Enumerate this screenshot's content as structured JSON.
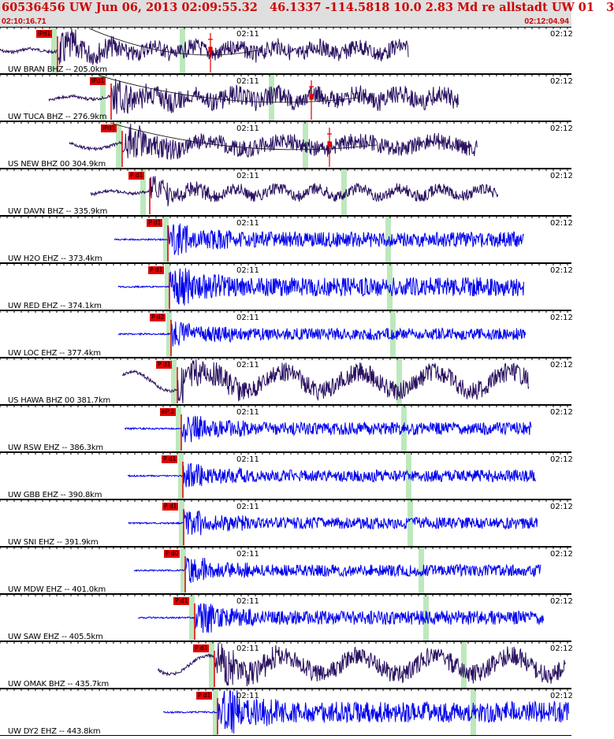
{
  "header": {
    "title": "60536456 UW Jun 06, 2013 02:09:55.32   46.1337 -114.5818 10.0 2.83 Md re allstadt UW 01   3",
    "time_start": "02:10:16.71",
    "time_end": "02:12:04.94"
  },
  "colors": {
    "header_bg": "#dfdfdf",
    "header_text": "#cc0000",
    "trace_bhz": "#2a1060",
    "trace_ehz": "#0000ee",
    "pick": "#e00000",
    "window": "#bde8bd"
  },
  "time_marks": {
    "minute_label": "02:11",
    "right_label": "02:12"
  },
  "traces": [
    {
      "label": "UW BRAN BHZ -- 205.0km",
      "pick": "IPd1",
      "kind": "BHZ"
    },
    {
      "label": "UW TUCA BHZ -- 276.9km",
      "pick": "IPd1",
      "kind": "BHZ"
    },
    {
      "label": "US NEW BHZ 00 304.9km",
      "pick": "IPd1",
      "kind": "BHZ"
    },
    {
      "label": "UW DAVN BHZ -- 335.9km",
      "pick": "P d1",
      "kind": "BHZ"
    },
    {
      "label": "UW H2O EHZ -- 373.4km",
      "pick": "P d1",
      "kind": "EHZ"
    },
    {
      "label": "UW RED EHZ -- 374.1km",
      "pick": "P d1",
      "kind": "EHZ"
    },
    {
      "label": "UW LOC EHZ -- 377.4km",
      "pick": "P d2",
      "kind": "EHZ"
    },
    {
      "label": "US HAWA BHZ 00 381.7km",
      "pick": "P d1",
      "kind": "BHZ"
    },
    {
      "label": "UW RSW EHZ -- 386.3km",
      "pick": "eP 2",
      "kind": "EHZ"
    },
    {
      "label": "UW GBB EHZ -- 390.8km",
      "pick": "P d1",
      "kind": "EHZ"
    },
    {
      "label": "UW SNI EHZ -- 391.9km",
      "pick": "P d1",
      "kind": "EHZ"
    },
    {
      "label": "UW MDW EHZ -- 401.0km",
      "pick": "P d0",
      "kind": "EHZ"
    },
    {
      "label": "UW SAW EHZ -- 405.5km",
      "pick": "P d1",
      "kind": "EHZ"
    },
    {
      "label": "UW OMAK BHZ -- 435.7km",
      "pick": "P d1",
      "kind": "BHZ"
    },
    {
      "label": "UW DY2 EHZ -- 443.8km",
      "pick": "P d1",
      "kind": "EHZ"
    }
  ]
}
